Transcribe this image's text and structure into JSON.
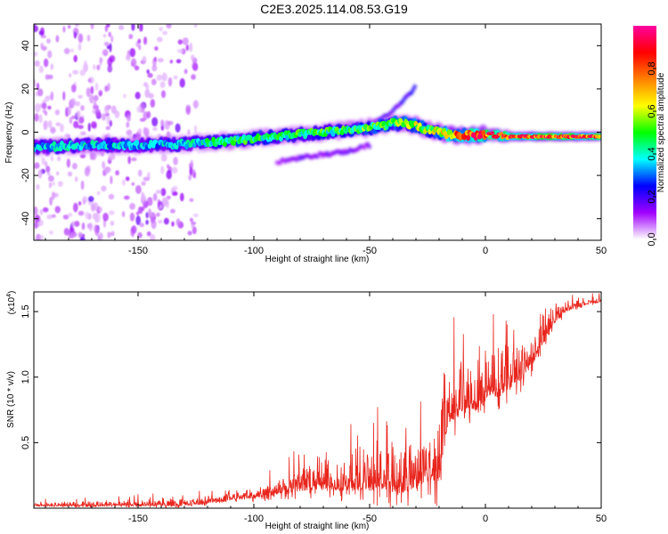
{
  "figure_title": "C2E3.2025.114.08.53.G19",
  "chart_data": [
    {
      "type": "heatmap",
      "xlabel": "Height of straight line (km)",
      "ylabel": "Frequency (Hz)",
      "xlim": [
        -195,
        50
      ],
      "ylim": [
        -50,
        50
      ],
      "x_ticks": [
        -150,
        -100,
        -50,
        0,
        50
      ],
      "y_ticks": [
        -40,
        -20,
        0,
        20,
        40
      ],
      "colorbar": {
        "label": "Normalized spectral amplitude",
        "range": [
          0,
          1
        ],
        "ticks": [
          0.0,
          0.2,
          0.4,
          0.6,
          0.8
        ],
        "tick_labels": [
          "0.0",
          "0.2",
          "0.4",
          "0.6",
          "0.8"
        ],
        "colormap": [
          "#ffffff",
          "#a000ff",
          "#0000ff",
          "#00ffff",
          "#00ff00",
          "#ffff00",
          "#ff8000",
          "#ff0000",
          "#ff00a0"
        ]
      },
      "ridge": {
        "x": [
          -195,
          -170,
          -150,
          -130,
          -110,
          -100,
          -90,
          -80,
          -70,
          -60,
          -50,
          -45,
          -40,
          -35,
          -30,
          -25,
          -20,
          -15,
          -10,
          -5,
          0,
          10,
          20,
          30,
          40,
          50
        ],
        "y": [
          -7,
          -6,
          -6,
          -5.5,
          -4,
          -3,
          -2,
          -1,
          0,
          1,
          2,
          3,
          4,
          4,
          3,
          1,
          0,
          -1,
          -1.5,
          -1.5,
          -1,
          -2,
          -2,
          -2,
          -2,
          -2
        ],
        "amplitude": [
          0.35,
          0.35,
          0.35,
          0.35,
          0.45,
          0.45,
          0.45,
          0.45,
          0.45,
          0.45,
          0.5,
          0.5,
          0.5,
          0.55,
          0.55,
          0.55,
          0.6,
          0.65,
          0.75,
          0.8,
          0.85,
          0.85,
          0.85,
          0.85,
          0.85,
          0.85
        ]
      },
      "secondary_tracks": [
        {
          "x": [
            -48,
            -40,
            -35,
            -30
          ],
          "y": [
            4,
            10,
            15,
            21
          ],
          "amplitude": 0.2
        },
        {
          "x": [
            -90,
            -75,
            -60,
            -50
          ],
          "y": [
            -14,
            -11,
            -9,
            -6
          ],
          "amplitude": 0.15
        }
      ],
      "noise_region_x": [
        -195,
        -125
      ]
    },
    {
      "type": "line",
      "xlabel": "Height of straight line (km)",
      "ylabel": "SNR (10 * v/v)",
      "y_multiplier": "(x10^4)",
      "y_multiplier_base": "(x10",
      "y_multiplier_exp": "4",
      "y_multiplier_close": ")",
      "xlim": [
        -195,
        50
      ],
      "ylim": [
        0,
        1.65
      ],
      "x_ticks": [
        -150,
        -100,
        -50,
        0,
        50
      ],
      "y_ticks": [
        0.5,
        1.0,
        1.5
      ],
      "y_tick_labels": [
        "0.5",
        "1.0",
        "1.5"
      ],
      "series": [
        {
          "color": "#e8251c",
          "x": [
            -195,
            -160,
            -130,
            -120,
            -110,
            -100,
            -90,
            -80,
            -70,
            -60,
            -50,
            -45,
            -40,
            -35,
            -30,
            -25,
            -20,
            -18,
            -16,
            -12,
            -8,
            -4,
            0,
            5,
            10,
            15,
            20,
            25,
            30,
            35,
            40,
            45,
            50
          ],
          "baseline": [
            0.02,
            0.03,
            0.03,
            0.05,
            0.08,
            0.1,
            0.14,
            0.18,
            0.2,
            0.2,
            0.22,
            0.24,
            0.24,
            0.22,
            0.25,
            0.3,
            0.35,
            0.55,
            0.75,
            0.8,
            0.82,
            0.85,
            0.9,
            0.95,
            1.0,
            1.05,
            1.15,
            1.3,
            1.45,
            1.52,
            1.55,
            1.57,
            1.58
          ],
          "noise": [
            0.02,
            0.03,
            0.04,
            0.04,
            0.05,
            0.07,
            0.1,
            0.14,
            0.16,
            0.2,
            0.25,
            0.3,
            0.35,
            0.3,
            0.25,
            0.3,
            0.45,
            0.35,
            0.3,
            0.3,
            0.3,
            0.3,
            0.3,
            0.28,
            0.25,
            0.22,
            0.2,
            0.15,
            0.1,
            0.06,
            0.04,
            0.03,
            0.03
          ]
        }
      ]
    }
  ]
}
